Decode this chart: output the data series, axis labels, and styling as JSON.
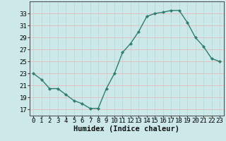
{
  "x": [
    0,
    1,
    2,
    3,
    4,
    5,
    6,
    7,
    8,
    9,
    10,
    11,
    12,
    13,
    14,
    15,
    16,
    17,
    18,
    19,
    20,
    21,
    22,
    23
  ],
  "y": [
    23,
    22,
    20.5,
    20.5,
    19.5,
    18.5,
    18,
    17.2,
    17.2,
    20.5,
    23,
    26.5,
    28,
    30,
    32.5,
    33,
    33.2,
    33.5,
    33.5,
    31.5,
    29,
    27.5,
    25.5,
    25
  ],
  "line_color": "#2e7d6e",
  "marker": "D",
  "marker_size": 2.2,
  "bg_color": "#cce8e8",
  "grid_color_major": "#e8b8b8",
  "grid_color_minor": "#b8d8d8",
  "xlabel": "Humidex (Indice chaleur)",
  "ylim": [
    16,
    35
  ],
  "xlim": [
    -0.5,
    23.5
  ],
  "yticks": [
    17,
    19,
    21,
    23,
    25,
    27,
    29,
    31,
    33
  ],
  "xticks": [
    0,
    1,
    2,
    3,
    4,
    5,
    6,
    7,
    8,
    9,
    10,
    11,
    12,
    13,
    14,
    15,
    16,
    17,
    18,
    19,
    20,
    21,
    22,
    23
  ],
  "xlabel_fontsize": 7.5,
  "tick_fontsize": 6.5,
  "line_width": 1.0
}
